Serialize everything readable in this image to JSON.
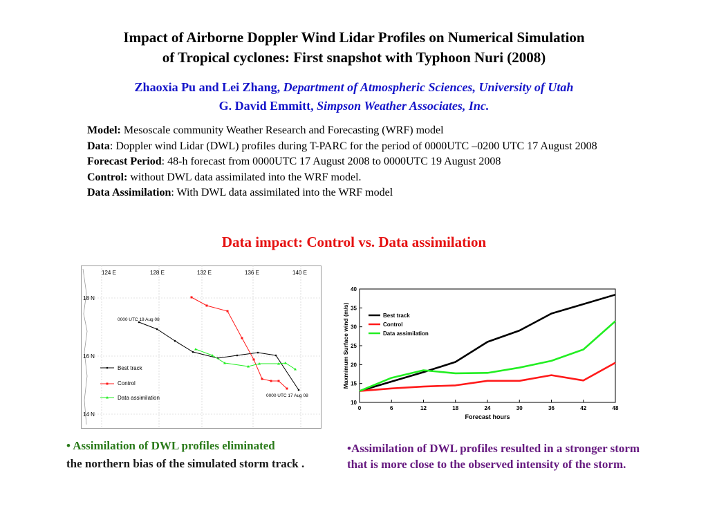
{
  "header": {
    "title_line1": "Impact of Airborne Doppler Wind Lidar Profiles on Numerical Simulation",
    "title_line2": "of Tropical cyclones: First snapshot with Typhoon Nuri (2008)",
    "author1": "Zhaoxia Pu and Lei Zhang,",
    "affil1": "Department of Atmospheric Sciences, University of Utah",
    "author2": "G. David Emmitt,",
    "affil2": "Simpson Weather Associates, Inc."
  },
  "info": {
    "model_label": "Model:",
    "model_text": " Mesoscale community Weather Research and Forecasting (WRF) model",
    "data_label": "Data",
    "data_text": ": Doppler wind Lidar  (DWL) profiles during T-PARC for the period of 0000UTC –0200 UTC 17 August 2008",
    "forecast_label": "Forecast Period",
    "forecast_text": ": 48-h forecast from 0000UTC 17 August 2008 to 0000UTC 19 August 2008",
    "control_label": "Control:",
    "control_text": " without  DWL data assimilated into the WRF model.",
    "da_label": "Data Assimilation",
    "da_text": ": With DWL data assimilated into the WRF model"
  },
  "subtitle": "Data impact: Control  vs. Data assimilation",
  "map": {
    "lon_labels": [
      "124 E",
      "128 E",
      "132 E",
      "136 E",
      "140 E"
    ],
    "lat_labels": [
      "18 N",
      "16 N",
      "14 N"
    ],
    "annot_start": "0000 UTC 19 Aug 08",
    "annot_end": "0000 UTC 17 Aug 08",
    "legend": [
      "Best track",
      "Control",
      "Data assimilation"
    ],
    "colors": {
      "best": "#000000",
      "control": "#ff1a1a",
      "da": "#22ee22"
    }
  },
  "chart_data": {
    "type": "line",
    "x": [
      0,
      6,
      12,
      18,
      24,
      30,
      36,
      42,
      48
    ],
    "xlabel": "Forecast hours",
    "ylabel": "Maxmimum Surface wind (m/s)",
    "xlim": [
      0,
      48
    ],
    "ylim": [
      10,
      40
    ],
    "yticks": [
      10,
      15,
      20,
      25,
      30,
      35,
      40
    ],
    "legend_position": "top-left",
    "series": [
      {
        "name": "Best track",
        "color": "#000000",
        "values": [
          13,
          15.5,
          18,
          20.7,
          26,
          29,
          33.5,
          36,
          38.5
        ]
      },
      {
        "name": "Control",
        "color": "#ff1a1a",
        "values": [
          13,
          13.7,
          14.2,
          14.5,
          15.7,
          15.7,
          17.2,
          15.8,
          20.5
        ]
      },
      {
        "name": "Data assimilation",
        "color": "#22ee22",
        "values": [
          13,
          16.5,
          18.5,
          17.7,
          17.8,
          19.2,
          21,
          24,
          31.5
        ]
      }
    ]
  },
  "captions": {
    "left_bullet": "•",
    "left_green": " Assimilation of DWL profiles eliminated",
    "left_rest": "the northern bias of the simulated storm track .",
    "right": "•Assimilation of DWL profiles resulted in a stronger storm that is more close to the observed intensity of the storm."
  }
}
